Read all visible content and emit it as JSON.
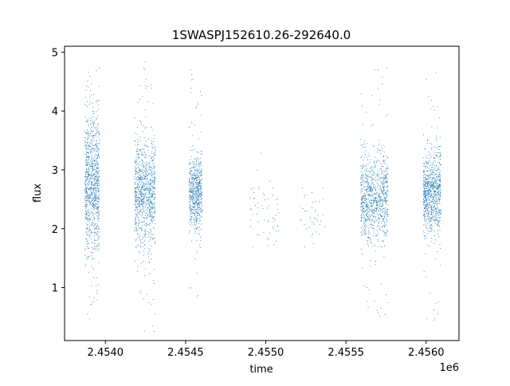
{
  "chart_data": {
    "type": "scatter",
    "title": "1SWASPJ152610.26-292640.0",
    "xlabel": "time",
    "ylabel": "flux",
    "x_offset_label": "1e6",
    "xlim": [
      2453745,
      2456205
    ],
    "ylim": [
      0.1,
      5.1
    ],
    "x_ticks": [
      2454000,
      2454500,
      2455000,
      2455500,
      2456000
    ],
    "x_tick_labels": [
      "2.4540",
      "2.4545",
      "2.4550",
      "2.4555",
      "2.4560"
    ],
    "y_ticks": [
      1,
      2,
      3,
      4,
      5
    ],
    "y_tick_labels": [
      "1",
      "2",
      "3",
      "4",
      "5"
    ],
    "grid": false,
    "point_color": "#1f77b4",
    "series": [
      {
        "values_summary": "dense clusters of points",
        "clusters": [
          {
            "x_start": 2453870,
            "x_end": 2453960,
            "y_center": 2.75,
            "y_spread": 0.6,
            "y_min": 0.4,
            "y_max": 4.8
          },
          {
            "x_start": 2454180,
            "x_end": 2454310,
            "y_center": 2.6,
            "y_spread": 0.45,
            "y_min": 0.25,
            "y_max": 4.85
          },
          {
            "x_start": 2454520,
            "x_end": 2454600,
            "y_center": 2.6,
            "y_spread": 0.3,
            "y_min": 0.8,
            "y_max": 4.8
          },
          {
            "x_start": 2454900,
            "x_end": 2455090,
            "y_center": 2.3,
            "y_spread": 0.3,
            "y_min": 1.55,
            "y_max": 3.3
          },
          {
            "x_start": 2455200,
            "x_end": 2455380,
            "y_center": 2.2,
            "y_spread": 0.25,
            "y_min": 1.7,
            "y_max": 2.7
          },
          {
            "x_start": 2455590,
            "x_end": 2455760,
            "y_center": 2.55,
            "y_spread": 0.35,
            "y_min": 0.45,
            "y_max": 4.75
          },
          {
            "x_start": 2455980,
            "x_end": 2456090,
            "y_center": 2.6,
            "y_spread": 0.35,
            "y_min": 0.4,
            "y_max": 4.8
          }
        ]
      }
    ]
  }
}
